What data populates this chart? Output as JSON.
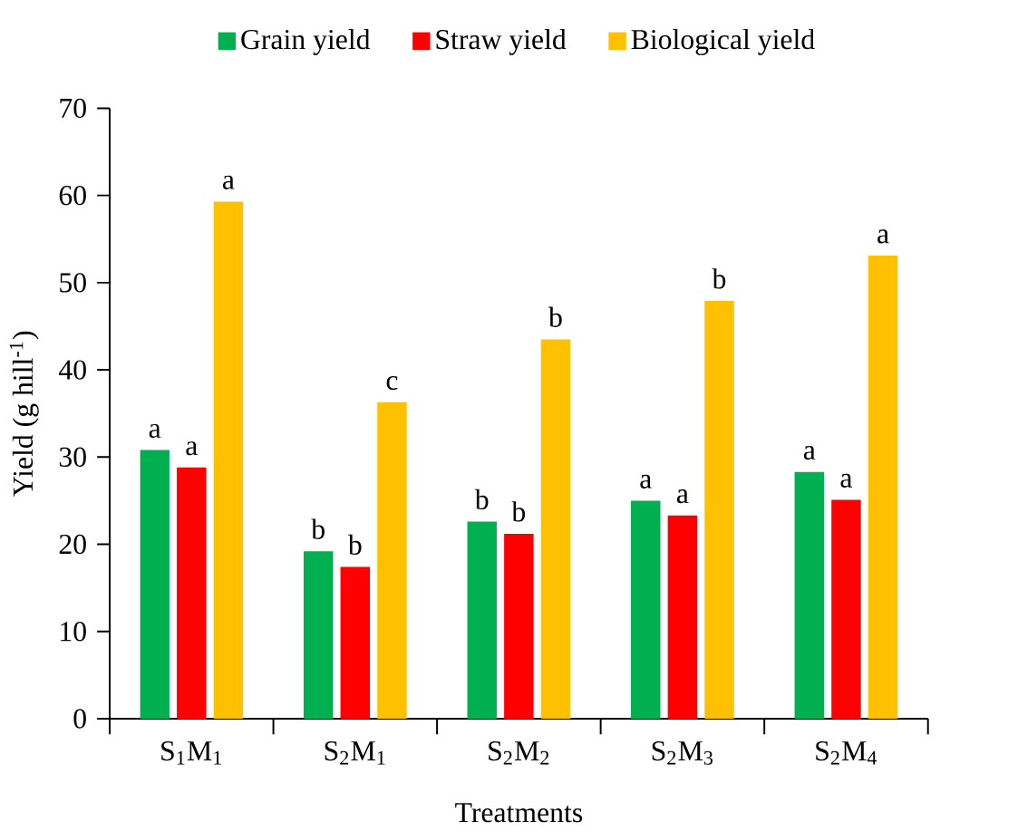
{
  "chart_data": {
    "type": "bar",
    "xlabel": "Treatments",
    "ylabel": "Yield (g hill$^{-1}$)",
    "categories": [
      "S$_{1}$M$_{1}$",
      "S$_{2}$M$_{1}$",
      "S$_{2}$M$_{2}$",
      "S$_{2}$M$_{3}$",
      "S$_{2}$M$_{4}$"
    ],
    "series": [
      {
        "name": "Grain yield",
        "color": "#00b050",
        "values": [
          30.8,
          19.2,
          22.6,
          25.0,
          28.3
        ],
        "value_labels": [
          "a",
          "b",
          "b",
          "a",
          "a"
        ]
      },
      {
        "name": "Straw yield",
        "color": "#ff0000",
        "values": [
          28.8,
          17.4,
          21.2,
          23.3,
          25.1
        ],
        "value_labels": [
          "a",
          "b",
          "b",
          "a",
          "a"
        ]
      },
      {
        "name": "Biological yield",
        "color": "#ffc000",
        "values": [
          59.3,
          36.3,
          43.5,
          47.9,
          53.1
        ],
        "value_labels": [
          "a",
          "c",
          "b",
          "b",
          "a"
        ]
      }
    ],
    "ylim": [
      0,
      70
    ],
    "yticks": [
      0,
      10,
      20,
      30,
      40,
      50,
      60,
      70
    ],
    "grid": false,
    "legend": "top"
  }
}
